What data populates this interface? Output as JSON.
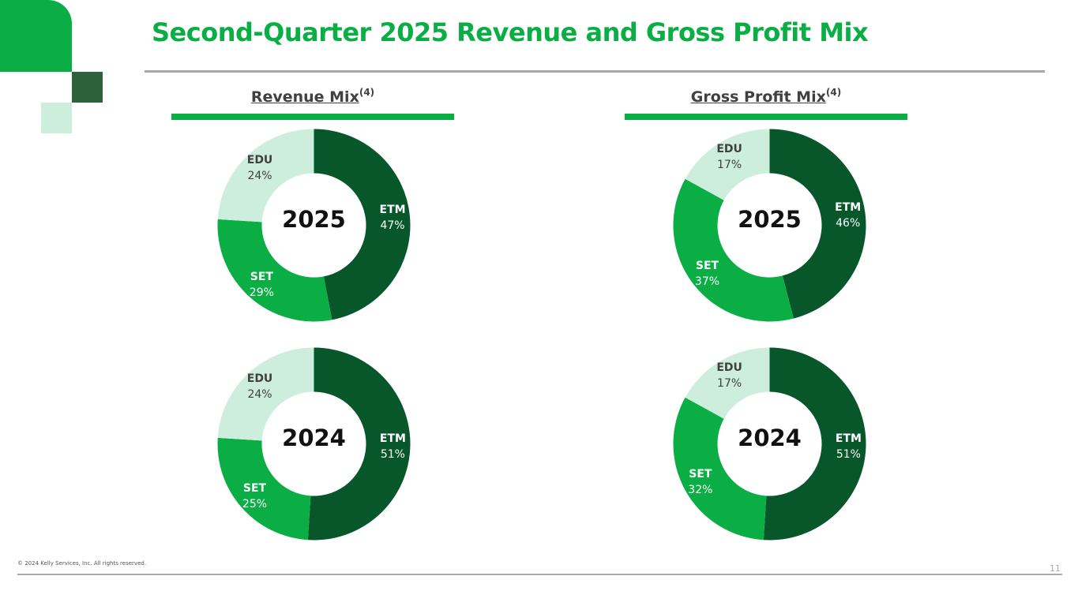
{
  "title": "Second-Quarter 2025 Revenue and Gross Profit Mix",
  "colors": {
    "brand_green": "#0aae45",
    "etm": "#07572a",
    "set": "#0aae45",
    "edu": "#cdeedd",
    "deco_dark": "#2d613a",
    "deco_light": "#cdeedd"
  },
  "sections": {
    "revenue": {
      "label": "Revenue Mix",
      "superscript": "(4)"
    },
    "gross_profit": {
      "label": "Gross Profit Mix",
      "superscript": "(4)"
    }
  },
  "footer": {
    "copyright": "© 2024 Kelly Services, Inc. All rights reserved.",
    "page_number": "11"
  },
  "chart_data": [
    {
      "type": "pie",
      "id": "revenue_2025",
      "section": "Revenue Mix",
      "center_label": "2025",
      "categories": [
        "ETM",
        "SET",
        "EDU"
      ],
      "values": [
        47,
        29,
        24
      ],
      "value_labels": [
        "47%",
        "29%",
        "24%"
      ]
    },
    {
      "type": "pie",
      "id": "gross_profit_2025",
      "section": "Gross Profit Mix",
      "center_label": "2025",
      "categories": [
        "ETM",
        "SET",
        "EDU"
      ],
      "values": [
        46,
        37,
        17
      ],
      "value_labels": [
        "46%",
        "37%",
        "17%"
      ]
    },
    {
      "type": "pie",
      "id": "revenue_2024",
      "section": "Revenue Mix",
      "center_label": "2024",
      "categories": [
        "ETM",
        "SET",
        "EDU"
      ],
      "values": [
        51,
        25,
        24
      ],
      "value_labels": [
        "51%",
        "25%",
        "24%"
      ]
    },
    {
      "type": "pie",
      "id": "gross_profit_2024",
      "section": "Gross Profit Mix",
      "center_label": "2024",
      "categories": [
        "ETM",
        "SET",
        "EDU"
      ],
      "values": [
        51,
        32,
        17
      ],
      "value_labels": [
        "51%",
        "32%",
        "17%"
      ]
    }
  ]
}
